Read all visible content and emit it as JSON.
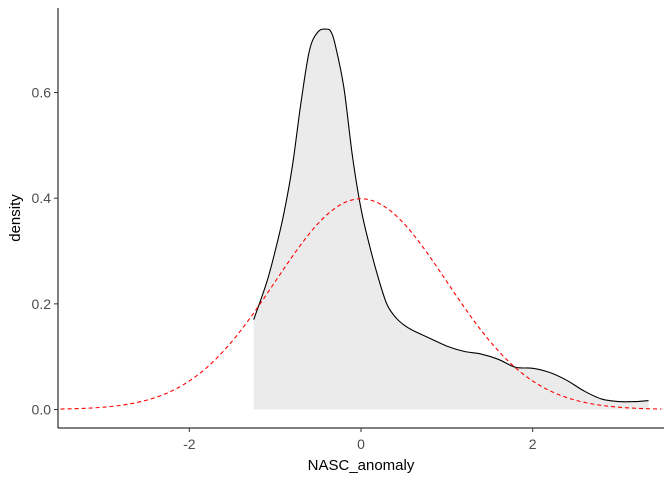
{
  "chart_data": {
    "type": "area",
    "xlabel": "NASC_anomaly",
    "ylabel": "density",
    "xlim": [
      -3.53,
      3.53
    ],
    "ylim": [
      -0.035,
      0.76
    ],
    "x_ticks": [
      -2,
      0,
      2
    ],
    "x_tick_labels": [
      "-2",
      "0",
      "2"
    ],
    "y_ticks": [
      0.0,
      0.2,
      0.4,
      0.6
    ],
    "y_tick_labels": [
      "0.0",
      "0.2",
      "0.4",
      "0.6"
    ],
    "grid": false,
    "series": [
      {
        "style": "filled-density",
        "x": [
          -1.25,
          -1.1,
          -1.0,
          -0.9,
          -0.8,
          -0.7,
          -0.6,
          -0.5,
          -0.4,
          -0.35,
          -0.3,
          -0.2,
          -0.1,
          0.0,
          0.1,
          0.2,
          0.3,
          0.4,
          0.5,
          0.6,
          0.8,
          1.0,
          1.2,
          1.4,
          1.6,
          1.8,
          2.0,
          2.2,
          2.4,
          2.6,
          2.8,
          3.0,
          3.2,
          3.35
        ],
        "y": [
          0.17,
          0.24,
          0.3,
          0.37,
          0.46,
          0.58,
          0.68,
          0.715,
          0.72,
          0.715,
          0.69,
          0.61,
          0.48,
          0.38,
          0.31,
          0.25,
          0.2,
          0.175,
          0.16,
          0.15,
          0.135,
          0.12,
          0.11,
          0.105,
          0.095,
          0.08,
          0.078,
          0.07,
          0.055,
          0.035,
          0.02,
          0.015,
          0.015,
          0.017
        ],
        "line_color": "#000000",
        "fill_color": "#ebebeb"
      },
      {
        "style": "dashed-normal",
        "mean": 0.0,
        "sd": 1.0,
        "x_range": [
          -3.5,
          3.5
        ],
        "line_color": "#ff0000"
      }
    ]
  }
}
